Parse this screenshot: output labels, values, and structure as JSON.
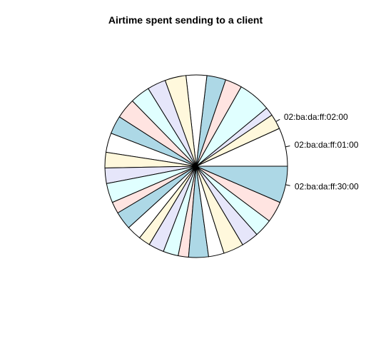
{
  "chart_data": {
    "type": "pie",
    "title": "Airtime spent sending to a client",
    "start_angle_deg": 0,
    "direction": "counterclockwise",
    "palette": [
      "#FFFFFF",
      "#FFF8DC",
      "#E6E6FA",
      "#E0FFFF",
      "#FFE4E1",
      "#ADD8E6"
    ],
    "slice_border": "#000000",
    "slices": [
      {
        "label": "02:ba:da:ff:01:00",
        "value": 8.9
      },
      {
        "label": "02:ba:da:ff:02:00",
        "value": 3.5
      },
      {
        "label": "",
        "value": 2.0
      },
      {
        "label": "",
        "value": 7.6
      },
      {
        "label": "",
        "value": 3.9
      },
      {
        "label": "",
        "value": 4.4
      },
      {
        "label": "",
        "value": 4.8
      },
      {
        "label": "",
        "value": 4.9
      },
      {
        "label": "",
        "value": 4.3
      },
      {
        "label": "",
        "value": 4.6
      },
      {
        "label": "",
        "value": 4.7
      },
      {
        "label": "",
        "value": 4.2
      },
      {
        "label": "",
        "value": 4.5
      },
      {
        "label": "",
        "value": 3.6
      },
      {
        "label": "",
        "value": 3.6
      },
      {
        "label": "",
        "value": 4.5
      },
      {
        "label": "",
        "value": 2.7
      },
      {
        "label": "",
        "value": 4.2
      },
      {
        "label": "",
        "value": 3.4
      },
      {
        "label": "",
        "value": 2.7
      },
      {
        "label": "",
        "value": 3.6
      },
      {
        "label": "",
        "value": 3.5
      },
      {
        "label": "",
        "value": 2.4
      },
      {
        "label": "",
        "value": 4.6
      },
      {
        "label": "",
        "value": 3.6
      },
      {
        "label": "",
        "value": 4.7
      },
      {
        "label": "",
        "value": 4.0
      },
      {
        "label": "",
        "value": 4.2
      },
      {
        "label": "",
        "value": 4.9
      },
      {
        "label": "02:ba:da:ff:30:00",
        "value": 8.5
      }
    ]
  }
}
